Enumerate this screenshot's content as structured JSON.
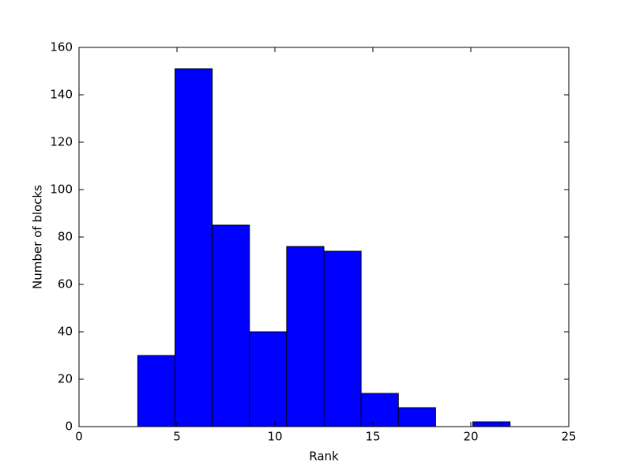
{
  "chart_data": {
    "type": "histogram",
    "xlabel": "Rank",
    "ylabel": "Number of blocks",
    "bins": [
      3,
      4.9,
      6.8,
      8.7,
      10.6,
      12.5,
      14.4,
      16.3,
      18.2,
      20.1,
      22
    ],
    "counts": [
      30,
      151,
      85,
      40,
      76,
      74,
      14,
      8,
      0,
      2
    ],
    "color": "#0000ff",
    "xlim": [
      0,
      25
    ],
    "xticks": [
      0,
      5,
      10,
      15,
      20,
      25
    ],
    "ylim": [
      0,
      160
    ],
    "yticks": [
      0,
      20,
      40,
      60,
      80,
      100,
      120,
      140,
      160
    ],
    "grid": false
  }
}
